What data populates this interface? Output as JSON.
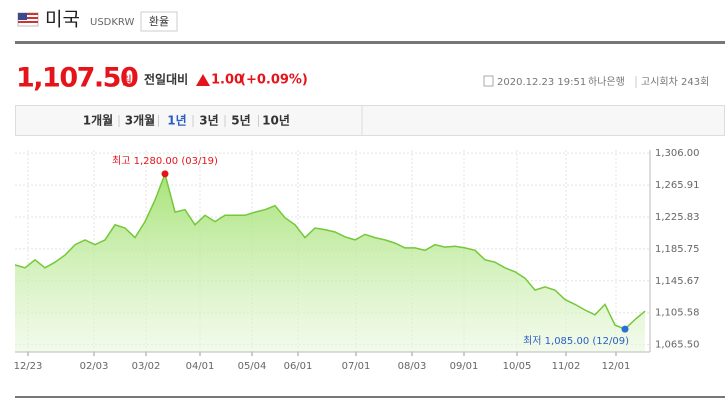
{
  "header": {
    "country": "미국",
    "code": "USDKRW",
    "button": "환율"
  },
  "quote": {
    "price": "1,107.50",
    "unit": "원",
    "change_label": "전일대비",
    "change": "1.00",
    "change_pct": "(+0.09%)",
    "time": "2020.12.23 19:51",
    "bank": "하나은행",
    "round": "고시회차 243회"
  },
  "tabs": {
    "items": [
      "1개월",
      "3개월",
      "1년",
      "3년",
      "5년",
      "10년"
    ],
    "selected": 2
  },
  "chart_data": {
    "type": "line",
    "values": [
      1165.7,
      1162,
      1172,
      1162,
      1169,
      1178,
      1191,
      1197,
      1191,
      1197,
      1216,
      1212,
      1200,
      1220,
      1247,
      1280,
      1232,
      1235,
      1216,
      1228,
      1220,
      1228,
      1228,
      1228,
      1232,
      1235,
      1240,
      1225,
      1216,
      1200,
      1212,
      1210,
      1207,
      1201,
      1197,
      1204,
      1200,
      1197,
      1193,
      1187,
      1187,
      1184,
      1191,
      1188,
      1189,
      1187,
      1184,
      1172,
      1169,
      1162,
      1157,
      1149,
      1134,
      1138,
      1134,
      1122,
      1116,
      1109,
      1103,
      1116,
      1090,
      1085,
      1097,
      1107.5
    ],
    "color": "#74c83a",
    "xlim": [
      0,
      63
    ],
    "xticks": [
      {
        "value": 1.3,
        "label": "12/23"
      },
      {
        "value": 7.9,
        "label": "02/03"
      },
      {
        "value": 13.1,
        "label": "03/02"
      },
      {
        "value": 18.5,
        "label": "04/01"
      },
      {
        "value": 23.7,
        "label": "05/04"
      },
      {
        "value": 28.3,
        "label": "06/01"
      },
      {
        "value": 34.1,
        "label": "07/01"
      },
      {
        "value": 39.7,
        "label": "08/03"
      },
      {
        "value": 44.9,
        "label": "09/01"
      },
      {
        "value": 50.2,
        "label": "10/05"
      },
      {
        "value": 55.1,
        "label": "11/02"
      },
      {
        "value": 60.1,
        "label": "12/01"
      }
    ],
    "ylim": [
      1060,
      1310
    ],
    "yticks": [
      {
        "value": 1065.5,
        "label": "1,065.50"
      },
      {
        "value": 1105.58,
        "label": "1,105.58"
      },
      {
        "value": 1145.67,
        "label": "1,145.67"
      },
      {
        "value": 1185.75,
        "label": "1,185.75"
      },
      {
        "value": 1225.83,
        "label": "1,225.83"
      },
      {
        "value": 1265.91,
        "label": "1,265.91"
      },
      {
        "value": 1306,
        "label": "1,306.00"
      }
    ],
    "grid": true,
    "annotations": {
      "high": "최고 1,280.00 (03/19)",
      "low": "최저 1,085.00 (12/09)"
    }
  }
}
